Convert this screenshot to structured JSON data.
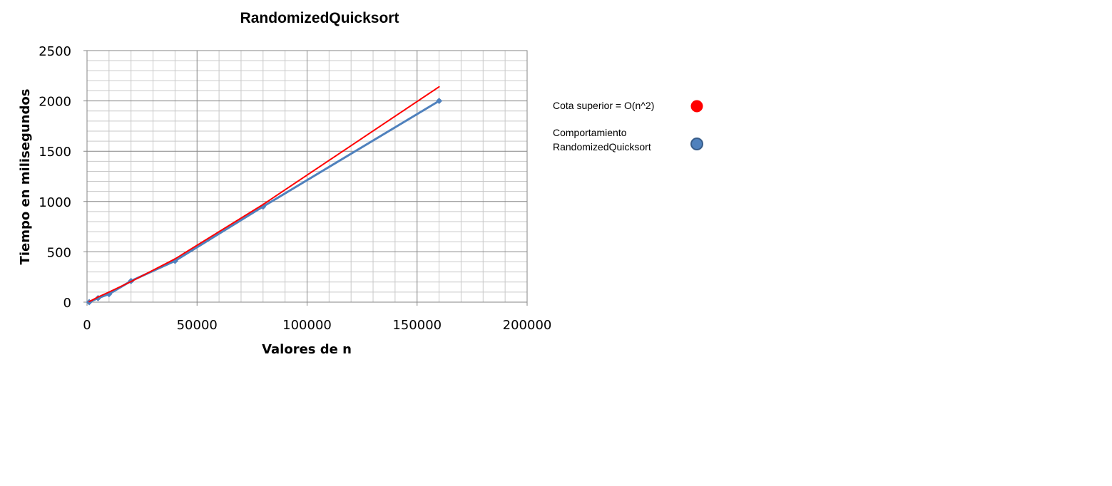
{
  "chart_data": {
    "type": "line",
    "title": "RandomizedQuicksort",
    "xlabel": "Valores de n",
    "ylabel": "Tiempo en milisegundos",
    "xlim": [
      0,
      200000
    ],
    "ylim": [
      0,
      2500
    ],
    "x_ticks": [
      "0",
      "50000",
      "100000",
      "150000",
      "200000"
    ],
    "y_ticks": [
      "0",
      "500",
      "1000",
      "1500",
      "2000",
      "2500"
    ],
    "grid": true,
    "legend_position": "right",
    "series": [
      {
        "name": "Cota superior = O(n^2)",
        "color": "#ff0000",
        "marker": "none",
        "x": [
          1000,
          5000,
          10000,
          20000,
          40000,
          80000,
          160000
        ],
        "y": [
          5,
          50,
          100,
          205,
          430,
          970,
          2140
        ]
      },
      {
        "name": "Comportamiento RandomizedQuicksort",
        "color": "#4f81bd",
        "marker": "diamond",
        "x": [
          1000,
          5000,
          10000,
          20000,
          40000,
          80000,
          160000
        ],
        "y": [
          0,
          40,
          80,
          210,
          410,
          950,
          2000
        ]
      }
    ]
  },
  "legend": {
    "upper_bound_label": "Cota superior = O(n^2)",
    "behavior_line1": "Comportamiento",
    "behavior_line2": "RandomizedQuicksort"
  }
}
